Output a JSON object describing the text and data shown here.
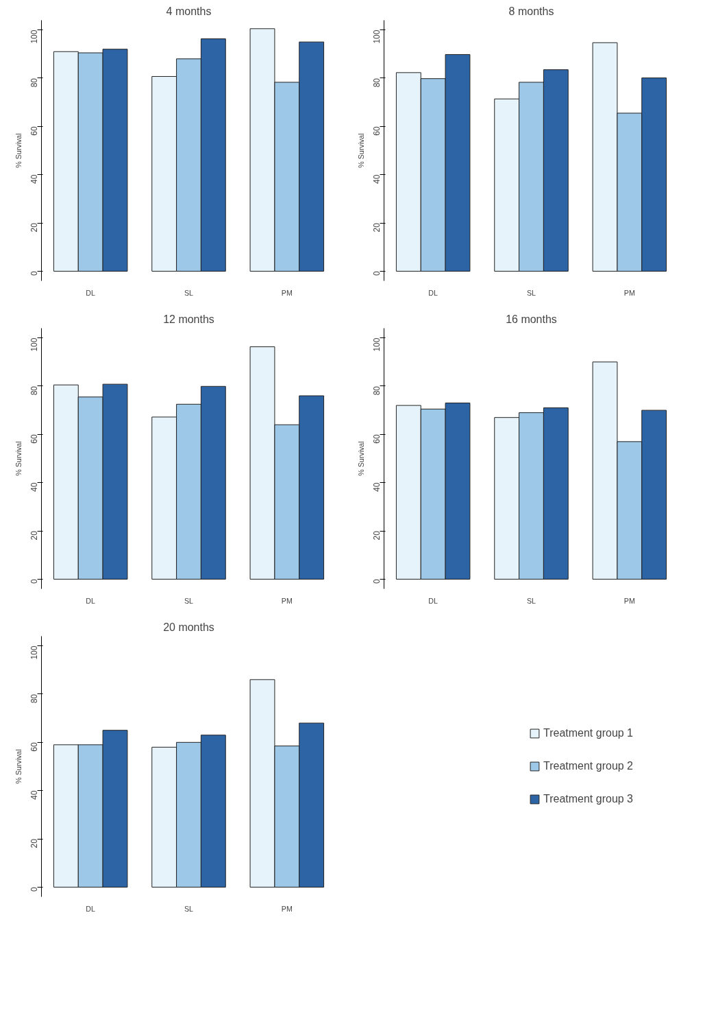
{
  "chart_data": [
    {
      "type": "bar",
      "title": "4 months",
      "ylabel": "% Survival",
      "categories": [
        "DL",
        "SL",
        "PM"
      ],
      "ylim": [
        -4,
        104
      ],
      "yticks": [
        0,
        20,
        40,
        60,
        80,
        100
      ],
      "grid": false,
      "legend": false,
      "series": [
        {
          "color": "#e6f3fb",
          "values": [
            91,
            80.7,
            100.5
          ]
        },
        {
          "color": "#9dc8e8",
          "values": [
            90.5,
            88,
            78.3
          ]
        },
        {
          "color": "#2c64a6",
          "values": [
            92,
            96.3,
            95
          ]
        }
      ]
    },
    {
      "type": "bar",
      "title": "8 months",
      "ylabel": "% Survival",
      "categories": [
        "DL",
        "SL",
        "PM"
      ],
      "ylim": [
        -4,
        104
      ],
      "yticks": [
        0,
        20,
        40,
        60,
        80,
        100
      ],
      "grid": false,
      "legend": false,
      "series": [
        {
          "color": "#e6f3fb",
          "values": [
            82.3,
            71.4,
            94.7
          ]
        },
        {
          "color": "#9dc8e8",
          "values": [
            79.8,
            78.3,
            65.5
          ]
        },
        {
          "color": "#2c64a6",
          "values": [
            89.8,
            83.5,
            80.1
          ]
        }
      ]
    },
    {
      "type": "bar",
      "title": "12 months",
      "ylabel": "% Survival",
      "categories": [
        "DL",
        "SL",
        "PM"
      ],
      "ylim": [
        -4,
        104
      ],
      "yticks": [
        0,
        20,
        40,
        60,
        80,
        100
      ],
      "grid": false,
      "legend": false,
      "series": [
        {
          "color": "#e6f3fb",
          "values": [
            80.5,
            67.2,
            96.3
          ]
        },
        {
          "color": "#9dc8e8",
          "values": [
            75.5,
            72.5,
            64
          ]
        },
        {
          "color": "#2c64a6",
          "values": [
            80.8,
            79.9,
            76
          ]
        }
      ]
    },
    {
      "type": "bar",
      "title": "16 months",
      "ylabel": "% Survival",
      "categories": [
        "DL",
        "SL",
        "PM"
      ],
      "ylim": [
        -4,
        104
      ],
      "yticks": [
        0,
        20,
        40,
        60,
        80,
        100
      ],
      "grid": false,
      "legend": false,
      "series": [
        {
          "color": "#e6f3fb",
          "values": [
            72,
            67,
            90
          ]
        },
        {
          "color": "#9dc8e8",
          "values": [
            70.5,
            69,
            57
          ]
        },
        {
          "color": "#2c64a6",
          "values": [
            73,
            71,
            70
          ]
        }
      ]
    },
    {
      "type": "bar",
      "title": "20 months",
      "ylabel": "% Survival",
      "categories": [
        "DL",
        "SL",
        "PM"
      ],
      "ylim": [
        -4,
        104
      ],
      "yticks": [
        0,
        20,
        40,
        60,
        80,
        100
      ],
      "grid": false,
      "legend": "right",
      "series": [
        {
          "name": "Treatment group 1",
          "color": "#e6f3fb",
          "values": [
            59,
            58,
            86
          ]
        },
        {
          "name": "Treatment group 2",
          "color": "#9dc8e8",
          "values": [
            59,
            60,
            58.5
          ]
        },
        {
          "name": "Treatment group 3",
          "color": "#2c64a6",
          "values": [
            65,
            63,
            68
          ]
        }
      ]
    }
  ]
}
